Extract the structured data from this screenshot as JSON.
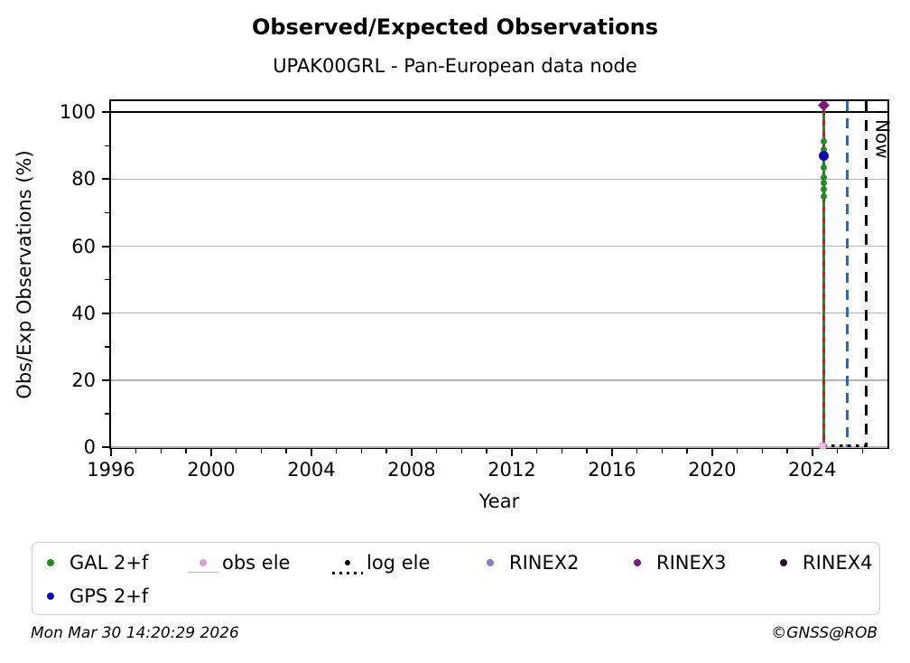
{
  "title": "Observed/Expected Observations",
  "subtitle": "UPAK00GRL - Pan-European data node",
  "now_label": "Now",
  "footer": {
    "timestamp": "Mon Mar 30 14:20:29 2026",
    "credit": "©GNSS@ROB"
  },
  "chart_data": {
    "type": "scatter",
    "title": "Observed/Expected Observations",
    "subtitle": "UPAK00GRL - Pan-European data node",
    "xlabel": "Year",
    "ylabel": "Obs/Exp Observations (%)",
    "xlim": [
      1996,
      2027
    ],
    "ylim": [
      0,
      103.3
    ],
    "x_ticks": [
      1996,
      2000,
      2004,
      2008,
      2012,
      2016,
      2020,
      2024
    ],
    "x_minor_tick_step": 1,
    "y_ticks": [
      0,
      20,
      40,
      60,
      80,
      100
    ],
    "y_minor_ticks": [
      10,
      30,
      50,
      70,
      90
    ],
    "grid_y": [
      0,
      20,
      40,
      60,
      80
    ],
    "grid_color": "#b4b4b4",
    "reference_line_y": 100,
    "legend_position": "below",
    "series": [
      {
        "name": "GAL 2+f",
        "color": "#228B22",
        "marker": "circle",
        "x": 2024.45,
        "values": [
          91.4,
          89.0,
          83.6,
          80.6,
          79.0,
          77.0,
          74.8
        ],
        "vline": {
          "from": 0,
          "to": 101,
          "style": "solid"
        }
      },
      {
        "name": "GPS 2+f",
        "color": "#0b0bb0",
        "marker": "circle",
        "x": 2024.45,
        "values": [
          87
        ]
      },
      {
        "name": "obs ele",
        "color": "#dda0dd",
        "marker": "square",
        "x": 2024.45,
        "values": [
          0
        ]
      },
      {
        "name": "log ele",
        "color": "#000000",
        "marker": "dotted-line",
        "line": {
          "x1": 2024.45,
          "x2": 2026.15,
          "y": 0.5
        }
      },
      {
        "name": "RINEX2",
        "color": "#8b7cc8",
        "marker": "circle",
        "values": []
      },
      {
        "name": "RINEX3",
        "color": "#7a1a7a",
        "marker": "diamond",
        "x": 2024.45,
        "values": [
          102
        ]
      },
      {
        "name": "RINEX4",
        "color": "#2e0b2a",
        "marker": "circle",
        "values": []
      }
    ],
    "vlines": [
      {
        "name": "red-dashed-line",
        "x": 2024.45,
        "color": "#dd1111",
        "style": "dashed",
        "from": 0,
        "to": 101
      },
      {
        "name": "blue-dashed-line",
        "x": 2025.4,
        "color": "#1b6ec2",
        "style": "dashed"
      },
      {
        "name": "now-line",
        "x": 2026.15,
        "color": "#000000",
        "style": "dashed",
        "label": "Now"
      }
    ],
    "legend": [
      "GAL 2+f",
      "GPS 2+f",
      "obs ele",
      "log ele",
      "RINEX2",
      "RINEX3",
      "RINEX4"
    ]
  }
}
